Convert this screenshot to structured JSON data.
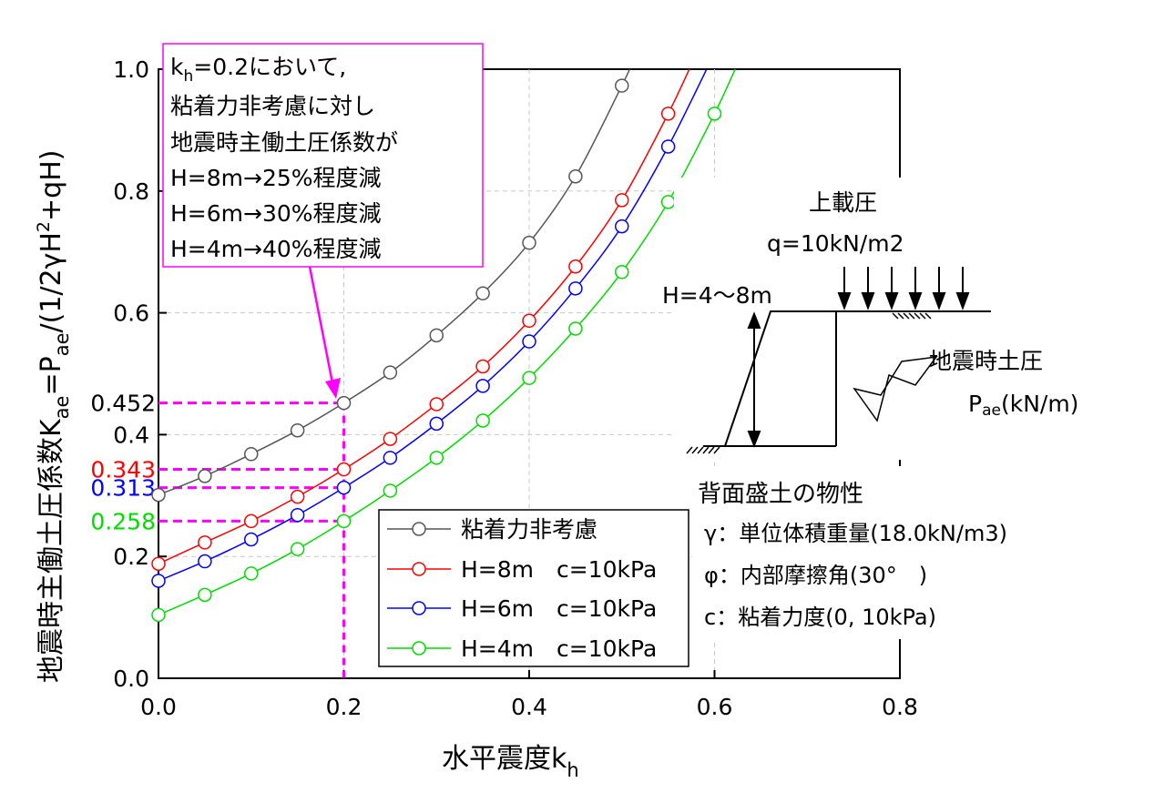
{
  "chart_data": {
    "type": "line",
    "xlabel": "水平震度",
    "xlabel_sub": "h",
    "ylabel_parts": {
      "p1": "地震時主働土圧係数K",
      "p1_sub": "ae",
      "p2": "=P",
      "p2_sub": "ae",
      "p3": "/(1/2γH",
      "p3_sup": "2",
      "p4": "+qH)"
    },
    "xlim": [
      0,
      0.8
    ],
    "ylim": [
      0,
      1.0
    ],
    "x_ticks": [
      "0.0",
      "0.2",
      "0.4",
      "0.6",
      "0.8"
    ],
    "y_ticks": [
      "0.0",
      "0.2",
      "0.4",
      "0.6",
      "0.8",
      "1.0"
    ],
    "grid": true,
    "legend_placement": "bottom-right",
    "series": [
      {
        "name": "粘着力非考慮",
        "color": "#555555",
        "x": [
          0,
          0.05,
          0.1,
          0.15,
          0.2,
          0.25,
          0.3,
          0.35,
          0.4,
          0.45,
          0.5
        ],
        "y": [
          0.301,
          0.332,
          0.368,
          0.407,
          0.452,
          0.502,
          0.563,
          0.632,
          0.715,
          0.824,
          0.973
        ]
      },
      {
        "name": "H=8m　c=10kPa",
        "color": "#ff0000",
        "x": [
          0,
          0.05,
          0.1,
          0.15,
          0.2,
          0.25,
          0.3,
          0.35,
          0.4,
          0.45,
          0.5,
          0.55
        ],
        "y": [
          0.188,
          0.223,
          0.258,
          0.298,
          0.343,
          0.393,
          0.45,
          0.512,
          0.587,
          0.676,
          0.785,
          0.927
        ]
      },
      {
        "name": "H=6m　c=10kPa",
        "color": "#0000ff",
        "x": [
          0,
          0.05,
          0.1,
          0.15,
          0.2,
          0.25,
          0.3,
          0.35,
          0.4,
          0.45,
          0.5,
          0.55
        ],
        "y": [
          0.16,
          0.192,
          0.228,
          0.268,
          0.313,
          0.362,
          0.418,
          0.48,
          0.553,
          0.64,
          0.742,
          0.873
        ]
      },
      {
        "name": "H=4m　c=10kPa",
        "color": "#00dd00",
        "x": [
          0,
          0.05,
          0.1,
          0.15,
          0.2,
          0.25,
          0.3,
          0.35,
          0.4,
          0.45,
          0.5,
          0.55,
          0.6
        ],
        "y": [
          0.104,
          0.137,
          0.172,
          0.212,
          0.258,
          0.308,
          0.362,
          0.423,
          0.493,
          0.574,
          0.667,
          0.782,
          0.927
        ]
      }
    ],
    "reference_lines": {
      "x": 0.2,
      "color": "#ff00ff",
      "values": [
        {
          "label": "0.452",
          "value": 0.452,
          "color": "#000000"
        },
        {
          "label": "0.343",
          "value": 0.343,
          "color": "#ff0000"
        },
        {
          "label": "0.313",
          "value": 0.313,
          "color": "#0000ff"
        },
        {
          "label": "0.258",
          "value": 0.258,
          "color": "#00dd00"
        }
      ]
    },
    "annotation": {
      "line1_k": "k",
      "line1_sub": "h",
      "line1_rest": "=0.2において,",
      "lines": [
        "粘着力非考慮に対し",
        "地震時主働土圧係数が",
        "H=8m→25%程度減",
        "H=6m→30%程度減",
        "H=4m→40%程度減"
      ],
      "border_color": "#ff00ff"
    }
  },
  "diagram": {
    "surcharge_label": "上載圧",
    "surcharge_value": "q=10kN/m2",
    "height_label": "H=4～8m",
    "pressure_label": "地震時土圧",
    "pressure_symbol": "P",
    "pressure_sub": "ae",
    "pressure_unit": "(kN/m)"
  },
  "properties": {
    "title": "背面盛土の物性",
    "items": [
      "γ：単位体積重量(18.0kN/m3)",
      "φ：内部摩擦角(30°　)",
      "c：粘着力度(0, 10kPa)"
    ]
  }
}
